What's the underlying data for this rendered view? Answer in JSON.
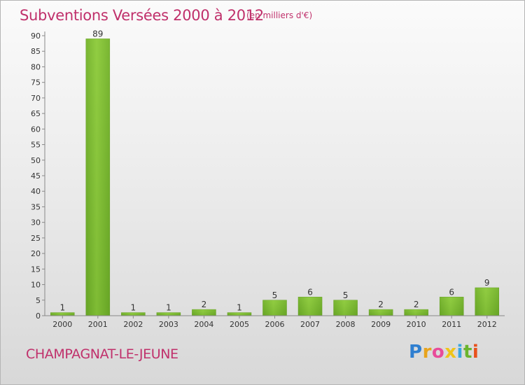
{
  "header": {
    "title": "Subventions Versées 2000 à 2012",
    "unit": "(en milliers d'€)"
  },
  "footer": {
    "commune": "CHAMPAGNAT-LE-JEUNE",
    "logo_letters": [
      "P",
      "r",
      "o",
      "x",
      "i",
      "t",
      "i"
    ],
    "logo_colors": [
      "#2f7fd0",
      "#e8a31c",
      "#e84c9a",
      "#f0c419",
      "#3aa7e0",
      "#6ab42d",
      "#e8501c"
    ]
  },
  "chart_data": {
    "type": "bar",
    "categories": [
      "2000",
      "2001",
      "2002",
      "2003",
      "2004",
      "2005",
      "2006",
      "2007",
      "2008",
      "2009",
      "2010",
      "2011",
      "2012"
    ],
    "values": [
      1,
      89,
      1,
      1,
      2,
      1,
      5,
      6,
      5,
      2,
      2,
      6,
      9
    ],
    "data_labels": [
      "1",
      "89",
      "1",
      "1",
      "2",
      "1",
      "5",
      "6",
      "5",
      "2",
      "2",
      "6",
      "9"
    ],
    "yticks": [
      "0",
      "5",
      "10",
      "15",
      "20",
      "25",
      "30",
      "35",
      "40",
      "45",
      "50",
      "55",
      "60",
      "65",
      "70",
      "75",
      "80",
      "85",
      "90"
    ],
    "ylim": [
      0,
      90
    ],
    "grid": false,
    "bar_color": "#76b72a"
  }
}
